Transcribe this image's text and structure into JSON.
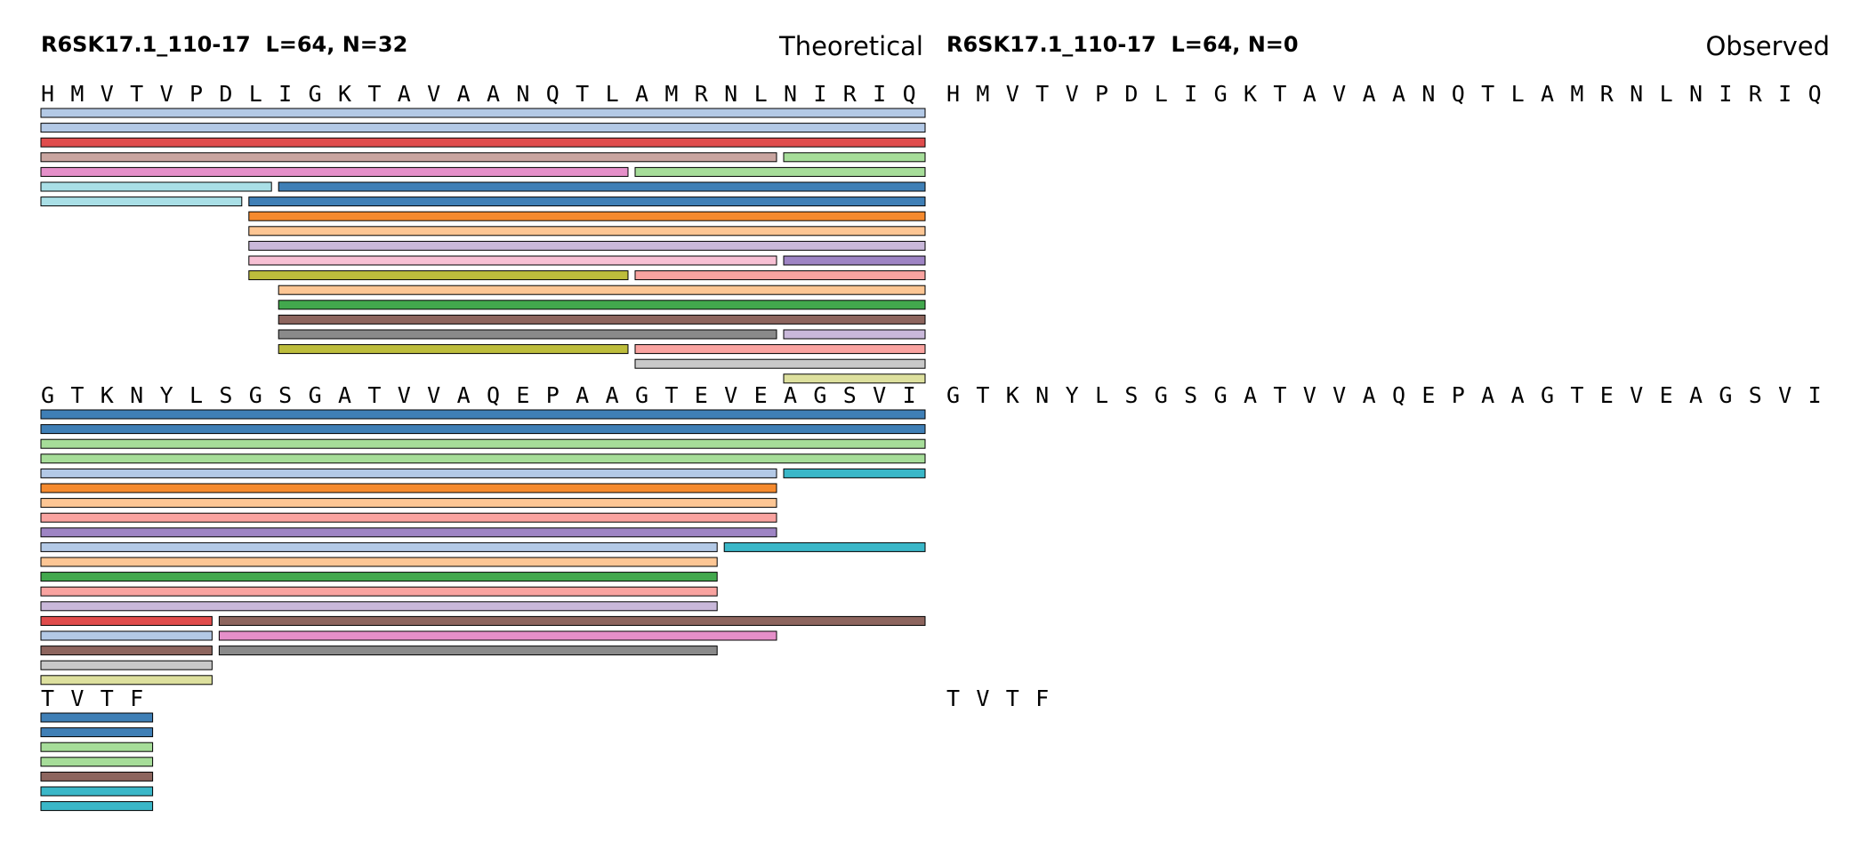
{
  "colors": {
    "steelblue": "#3f7fb6",
    "lightblue": "#b3c9e6",
    "red": "#e04c4c",
    "rosybrown": "#c9a5a0",
    "lightgreen": "#a6dd99",
    "pink": "#e58fc9",
    "paleblue": "#a9dfe6",
    "orange": "#f58a2e",
    "peach": "#fdc694",
    "lavender": "#c9b8da",
    "lightpink": "#f7c0d4",
    "purple": "#9e84c4",
    "olive": "#bdbd3c",
    "salmon": "#f9a3a0",
    "green": "#42a84d",
    "brown": "#8d655e",
    "gray": "#8a8a8a",
    "lightgray": "#c8c8c8",
    "khaki": "#dde09e",
    "cyan": "#3ab7c8"
  },
  "panels": [
    {
      "header": "R6SK17.1_110-17  L=64, N=32",
      "tag": "Theoretical",
      "blocks": [
        {
          "residues": [
            "H",
            "M",
            "V",
            "T",
            "V",
            "P",
            "D",
            "L",
            "I",
            "G",
            "K",
            "T",
            "A",
            "V",
            "A",
            "A",
            "N",
            "Q",
            "T",
            "L",
            "A",
            "M",
            "R",
            "N",
            "L",
            "N",
            "I",
            "R",
            "I",
            "Q"
          ],
          "peptides": [
            {
              "row": 0,
              "start": 0,
              "end": 29,
              "color": "lightblue"
            },
            {
              "row": 1,
              "start": 0,
              "end": 29,
              "color": "lightblue"
            },
            {
              "row": 2,
              "start": 0,
              "end": 29,
              "color": "red"
            },
            {
              "row": 3,
              "start": 0,
              "end": 24,
              "color": "rosybrown"
            },
            {
              "row": 3,
              "start": 25,
              "end": 29,
              "color": "lightgreen"
            },
            {
              "row": 4,
              "start": 0,
              "end": 19,
              "color": "pink"
            },
            {
              "row": 4,
              "start": 20,
              "end": 29,
              "color": "lightgreen"
            },
            {
              "row": 5,
              "start": 0,
              "end": 7,
              "color": "paleblue"
            },
            {
              "row": 5,
              "start": 8,
              "end": 29,
              "color": "steelblue"
            },
            {
              "row": 6,
              "start": 0,
              "end": 6,
              "color": "paleblue"
            },
            {
              "row": 6,
              "start": 7,
              "end": 29,
              "color": "steelblue"
            },
            {
              "row": 7,
              "start": 7,
              "end": 29,
              "color": "orange"
            },
            {
              "row": 8,
              "start": 7,
              "end": 29,
              "color": "peach"
            },
            {
              "row": 9,
              "start": 7,
              "end": 29,
              "color": "lavender"
            },
            {
              "row": 10,
              "start": 7,
              "end": 24,
              "color": "lightpink"
            },
            {
              "row": 10,
              "start": 25,
              "end": 29,
              "color": "purple"
            },
            {
              "row": 11,
              "start": 7,
              "end": 19,
              "color": "olive"
            },
            {
              "row": 11,
              "start": 20,
              "end": 29,
              "color": "salmon"
            },
            {
              "row": 12,
              "start": 8,
              "end": 29,
              "color": "peach"
            },
            {
              "row": 13,
              "start": 8,
              "end": 29,
              "color": "green"
            },
            {
              "row": 14,
              "start": 8,
              "end": 29,
              "color": "brown"
            },
            {
              "row": 15,
              "start": 8,
              "end": 24,
              "color": "gray"
            },
            {
              "row": 15,
              "start": 25,
              "end": 29,
              "color": "lavender"
            },
            {
              "row": 16,
              "start": 8,
              "end": 19,
              "color": "olive"
            },
            {
              "row": 16,
              "start": 20,
              "end": 29,
              "color": "salmon"
            },
            {
              "row": 17,
              "start": 20,
              "end": 29,
              "color": "lightgray"
            },
            {
              "row": 18,
              "start": 25,
              "end": 29,
              "color": "khaki"
            }
          ]
        },
        {
          "residues": [
            "G",
            "T",
            "K",
            "N",
            "Y",
            "L",
            "S",
            "G",
            "S",
            "G",
            "A",
            "T",
            "V",
            "V",
            "A",
            "Q",
            "E",
            "P",
            "A",
            "A",
            "G",
            "T",
            "E",
            "V",
            "E",
            "A",
            "G",
            "S",
            "V",
            "I"
          ],
          "peptides": [
            {
              "row": 0,
              "start": 0,
              "end": 29,
              "color": "steelblue"
            },
            {
              "row": 1,
              "start": 0,
              "end": 29,
              "color": "steelblue"
            },
            {
              "row": 2,
              "start": 0,
              "end": 29,
              "color": "lightgreen"
            },
            {
              "row": 3,
              "start": 0,
              "end": 29,
              "color": "lightgreen"
            },
            {
              "row": 4,
              "start": 0,
              "end": 24,
              "color": "lightblue"
            },
            {
              "row": 4,
              "start": 25,
              "end": 29,
              "color": "cyan"
            },
            {
              "row": 5,
              "start": 0,
              "end": 24,
              "color": "orange"
            },
            {
              "row": 6,
              "start": 0,
              "end": 24,
              "color": "peach"
            },
            {
              "row": 7,
              "start": 0,
              "end": 24,
              "color": "salmon"
            },
            {
              "row": 8,
              "start": 0,
              "end": 24,
              "color": "purple"
            },
            {
              "row": 9,
              "start": 0,
              "end": 22,
              "color": "lightblue"
            },
            {
              "row": 9,
              "start": 23,
              "end": 29,
              "color": "cyan"
            },
            {
              "row": 10,
              "start": 0,
              "end": 22,
              "color": "peach"
            },
            {
              "row": 11,
              "start": 0,
              "end": 22,
              "color": "green"
            },
            {
              "row": 12,
              "start": 0,
              "end": 22,
              "color": "salmon"
            },
            {
              "row": 13,
              "start": 0,
              "end": 22,
              "color": "lavender"
            },
            {
              "row": 14,
              "start": 0,
              "end": 5,
              "color": "red"
            },
            {
              "row": 14,
              "start": 6,
              "end": 29,
              "color": "brown"
            },
            {
              "row": 15,
              "start": 0,
              "end": 5,
              "color": "lightblue"
            },
            {
              "row": 15,
              "start": 6,
              "end": 24,
              "color": "pink"
            },
            {
              "row": 16,
              "start": 0,
              "end": 5,
              "color": "brown"
            },
            {
              "row": 16,
              "start": 6,
              "end": 22,
              "color": "gray"
            },
            {
              "row": 17,
              "start": 0,
              "end": 5,
              "color": "lightgray"
            },
            {
              "row": 18,
              "start": 0,
              "end": 5,
              "color": "khaki"
            }
          ]
        },
        {
          "residues": [
            "T",
            "V",
            "T",
            "F"
          ],
          "peptides": [
            {
              "row": 0,
              "start": 0,
              "end": 3,
              "color": "steelblue"
            },
            {
              "row": 1,
              "start": 0,
              "end": 3,
              "color": "steelblue"
            },
            {
              "row": 2,
              "start": 0,
              "end": 3,
              "color": "lightgreen"
            },
            {
              "row": 3,
              "start": 0,
              "end": 3,
              "color": "lightgreen"
            },
            {
              "row": 4,
              "start": 0,
              "end": 3,
              "color": "brown"
            },
            {
              "row": 5,
              "start": 0,
              "end": 3,
              "color": "cyan"
            },
            {
              "row": 6,
              "start": 0,
              "end": 3,
              "color": "cyan"
            }
          ]
        }
      ]
    },
    {
      "header": "R6SK17.1_110-17  L=64, N=0",
      "tag": "Observed",
      "blocks": [
        {
          "residues": [
            "H",
            "M",
            "V",
            "T",
            "V",
            "P",
            "D",
            "L",
            "I",
            "G",
            "K",
            "T",
            "A",
            "V",
            "A",
            "A",
            "N",
            "Q",
            "T",
            "L",
            "A",
            "M",
            "R",
            "N",
            "L",
            "N",
            "I",
            "R",
            "I",
            "Q"
          ],
          "peptides": []
        },
        {
          "residues": [
            "G",
            "T",
            "K",
            "N",
            "Y",
            "L",
            "S",
            "G",
            "S",
            "G",
            "A",
            "T",
            "V",
            "V",
            "A",
            "Q",
            "E",
            "P",
            "A",
            "A",
            "G",
            "T",
            "E",
            "V",
            "E",
            "A",
            "G",
            "S",
            "V",
            "I"
          ],
          "peptides": []
        },
        {
          "residues": [
            "T",
            "V",
            "T",
            "F"
          ],
          "peptides": []
        }
      ]
    }
  ]
}
